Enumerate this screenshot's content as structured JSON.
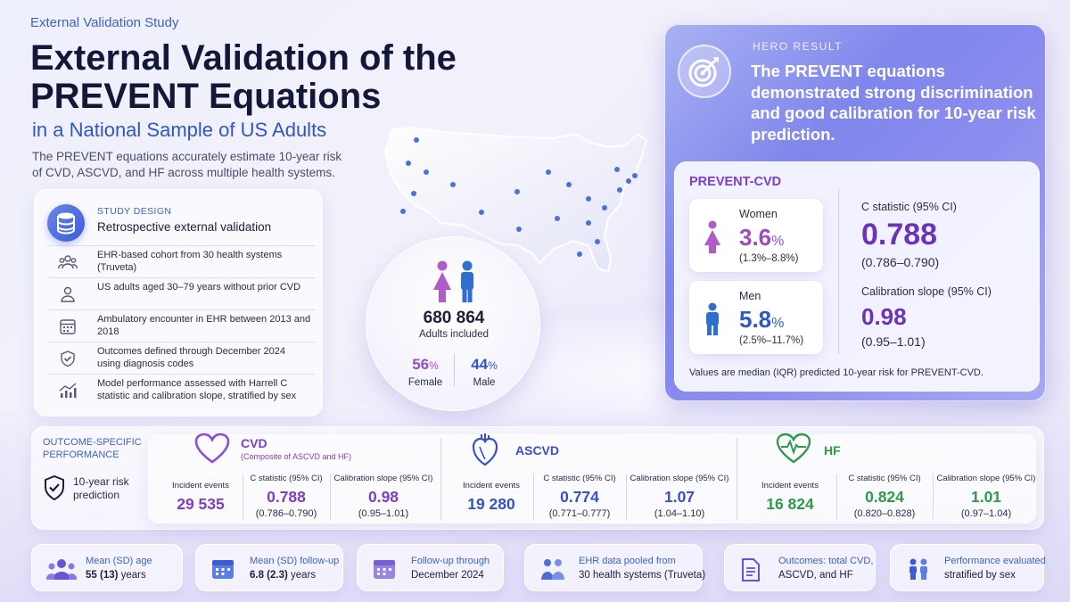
{
  "header": {
    "eyebrow": "External Validation Study",
    "title_line1": "External Validation of the",
    "title_line2": "PREVENT Equations",
    "subtitle": "in a National Sample of US Adults",
    "description": "The PREVENT equations accurately estimate 10-year risk of CVD, ASCVD, and HF across multiple health systems."
  },
  "study_design": {
    "label": "STUDY DESIGN",
    "title": "Retrospective external validation",
    "icon": "database-icon",
    "items": [
      {
        "icon": "people-group-icon",
        "text": "EHR-based cohort from 30 health systems (Truveta)"
      },
      {
        "icon": "person-icon",
        "text": "US adults aged 30–79 years without prior CVD"
      },
      {
        "icon": "calendar-icon",
        "text": "Ambulatory encounter in EHR between 2013 and 2018"
      },
      {
        "icon": "shield-check-icon",
        "text": "Outcomes defined through December 2024 using diagnosis codes"
      },
      {
        "icon": "chart-trend-icon",
        "text": "Model performance assessed with Harrell C statistic and calibration slope, stratified by sex"
      }
    ]
  },
  "cohort": {
    "total": "680 864",
    "total_label": "Adults included",
    "female_pct": "56",
    "female_label": "Female",
    "male_pct": "44",
    "male_label": "Male",
    "pct_sign": "%"
  },
  "hero": {
    "label": "HERO RESULT",
    "text": "The PREVENT equations demonstrated strong discrimination and good calibration for 10-year risk prediction.",
    "icon": "target-icon",
    "panel_title": "PREVENT-CVD",
    "women_label": "Women",
    "women_value": "3.6",
    "women_ci": "(1.3%–8.8%)",
    "men_label": "Men",
    "men_value": "5.8",
    "men_ci": "(2.5%–11.7%)",
    "pct_sign": "%",
    "c_label": "C statistic (95% CI)",
    "c_value": "0.788",
    "c_ci": "(0.786–0.790)",
    "slope_label": "Calibration slope (95% CI)",
    "slope_value": "0.98",
    "slope_ci": "(0.95–1.01)",
    "note": "Values are median (IQR) predicted 10-year risk for PREVENT-CVD."
  },
  "outcome": {
    "label": "OUTCOME-SPECIFIC PERFORMANCE",
    "sub": "10-year risk prediction",
    "events_label": "Incident events",
    "c_label": "C statistic (95% CI)",
    "slope_label": "Calibration slope (95% CI)",
    "sections": [
      {
        "name": "CVD",
        "note": "(Composite of ASCVD and HF)",
        "icon": "heart-outline-icon",
        "color": "#7b3fc6",
        "events": "29 535",
        "c": "0.788",
        "c_ci": "(0.786–0.790)",
        "slope": "0.98",
        "slope_ci": "(0.95–1.01)"
      },
      {
        "name": "ASCVD",
        "note": "",
        "icon": "anatomical-heart-icon",
        "color": "#3451c7",
        "events": "19 280",
        "c": "0.774",
        "c_ci": "(0.771–0.777)",
        "slope": "1.07",
        "slope_ci": "(1.04–1.10)"
      },
      {
        "name": "HF",
        "note": "",
        "icon": "heart-pulse-icon",
        "color": "#2f9a4a",
        "events": "16 824",
        "c": "0.824",
        "c_ci": "(0.820–0.828)",
        "slope": "1.01",
        "slope_ci": "(0.97–1.04)"
      }
    ]
  },
  "footer": [
    {
      "icon": "people-icon",
      "line1": "Mean (SD) age",
      "line2_bold": "55 (13)",
      "line2_rest": " years"
    },
    {
      "icon": "calendar-icon",
      "line1": "Mean (SD) follow-up",
      "line2_bold": "6.8 (2.3)",
      "line2_rest": " years"
    },
    {
      "icon": "calendar-icon",
      "line1": "Follow-up through",
      "line2_bold": "",
      "line2_rest": "December 2024"
    },
    {
      "icon": "people-pair-icon",
      "line1": "EHR data pooled from",
      "line2_bold": "",
      "line2_rest": "30 health systems (Truveta)"
    },
    {
      "icon": "document-icon",
      "line1": "Outcomes: total CVD,",
      "line2_bold": "",
      "line2_rest": "ASCVD, and HF"
    },
    {
      "icon": "people-pair-icon",
      "line1": "Performance evaluated",
      "line2_bold": "",
      "line2_rest": "stratified by sex"
    }
  ]
}
